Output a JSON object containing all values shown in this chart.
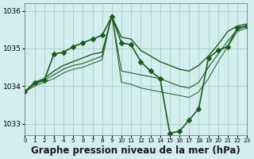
{
  "bg_color": "#d4eef0",
  "grid_color": "#aacccc",
  "line_color": "#1a5c1a",
  "marker_color": "#1a5c1a",
  "xlabel": "Graphe pression niveau de la mer (hPa)",
  "xlabel_fontsize": 8.5,
  "ylabel_ticks": [
    1033,
    1034,
    1035,
    1036
  ],
  "xlim": [
    0,
    23
  ],
  "ylim": [
    1032.7,
    1036.2
  ],
  "xticks": [
    0,
    1,
    2,
    3,
    4,
    5,
    6,
    7,
    8,
    9,
    10,
    11,
    12,
    13,
    14,
    15,
    16,
    17,
    18,
    19,
    20,
    21,
    22,
    23
  ],
  "series": [
    {
      "x": [
        0,
        1,
        2,
        3,
        4,
        5,
        6,
        7,
        8,
        9,
        10,
        11,
        12,
        13,
        14,
        15,
        16,
        17,
        18,
        19,
        20,
        21,
        22,
        23
      ],
      "y": [
        1033.85,
        1034.1,
        1034.15,
        1034.85,
        1034.9,
        1035.05,
        1035.15,
        1035.25,
        1035.35,
        1035.85,
        1035.15,
        1035.1,
        1034.65,
        1034.4,
        1034.2,
        1032.75,
        1032.8,
        1033.1,
        1033.4,
        1034.75,
        1034.95,
        1035.05,
        1035.55,
        1035.6
      ],
      "marker": "D",
      "markersize": 3.0,
      "linewidth": 1.2
    },
    {
      "x": [
        0,
        1,
        2,
        3,
        4,
        5,
        6,
        7,
        8,
        9,
        10,
        11,
        12,
        13,
        14,
        15,
        16,
        17,
        18,
        19,
        20,
        21,
        22,
        23
      ],
      "y": [
        1033.85,
        1034.1,
        1034.2,
        1034.4,
        1034.55,
        1034.65,
        1034.75,
        1034.85,
        1034.9,
        1035.85,
        1035.3,
        1035.25,
        1034.95,
        1034.8,
        1034.65,
        1034.55,
        1034.45,
        1034.4,
        1034.55,
        1034.8,
        1035.1,
        1035.45,
        1035.6,
        1035.65
      ],
      "marker": null,
      "markersize": 0,
      "linewidth": 1.0
    },
    {
      "x": [
        0,
        1,
        2,
        3,
        4,
        5,
        6,
        7,
        8,
        9,
        10,
        11,
        12,
        13,
        14,
        15,
        16,
        17,
        18,
        19,
        20,
        21,
        22,
        23
      ],
      "y": [
        1033.85,
        1034.05,
        1034.15,
        1034.3,
        1034.45,
        1034.55,
        1034.6,
        1034.7,
        1034.8,
        1035.9,
        1034.4,
        1034.35,
        1034.3,
        1034.25,
        1034.2,
        1034.1,
        1034.0,
        1033.95,
        1034.1,
        1034.5,
        1034.85,
        1035.2,
        1035.5,
        1035.6
      ],
      "marker": null,
      "markersize": 0,
      "linewidth": 0.8
    },
    {
      "x": [
        0,
        1,
        2,
        3,
        4,
        5,
        6,
        7,
        8,
        9,
        10,
        11,
        12,
        13,
        14,
        15,
        16,
        17,
        18,
        19,
        20,
        21,
        22,
        23
      ],
      "y": [
        1033.85,
        1034.0,
        1034.1,
        1034.2,
        1034.35,
        1034.45,
        1034.5,
        1034.6,
        1034.7,
        1035.9,
        1034.1,
        1034.05,
        1033.95,
        1033.9,
        1033.85,
        1033.8,
        1033.75,
        1033.7,
        1033.85,
        1034.2,
        1034.65,
        1035.05,
        1035.45,
        1035.55
      ],
      "marker": null,
      "markersize": 0,
      "linewidth": 0.7
    }
  ]
}
